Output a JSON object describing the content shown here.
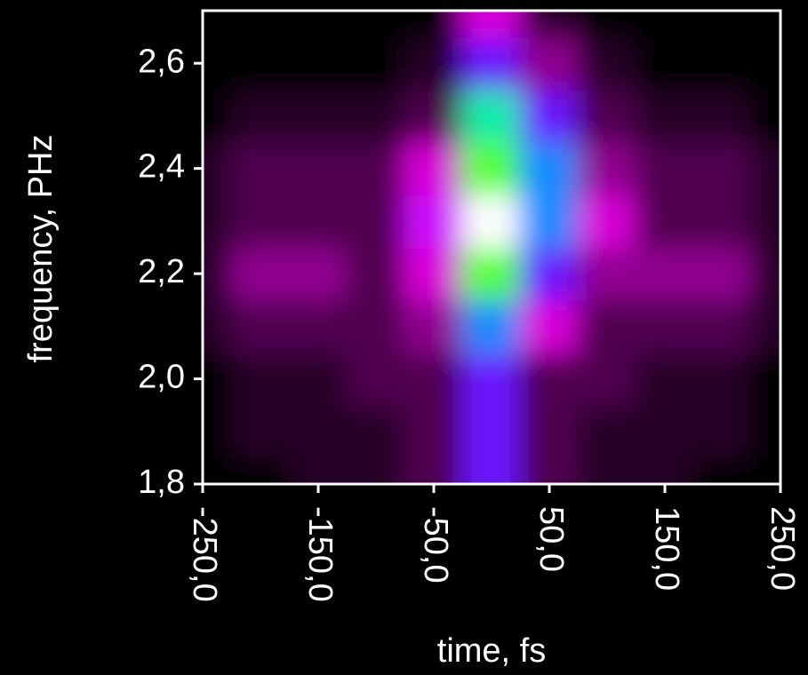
{
  "chart_data": {
    "type": "heatmap",
    "xlabel": "time, fs",
    "ylabel": "frequency, PHz",
    "x": [
      -250,
      -200,
      -150,
      -100,
      -50,
      0,
      50,
      100,
      150,
      200,
      250
    ],
    "y": [
      1.8,
      1.9,
      2.0,
      2.1,
      2.2,
      2.3,
      2.4,
      2.5,
      2.6,
      2.7
    ],
    "z": [
      [
        1,
        1,
        1.5,
        1.5,
        2,
        4,
        2,
        1.5,
        1.5,
        1,
        1
      ],
      [
        1,
        1.5,
        1.5,
        1.5,
        2,
        4,
        2,
        1.5,
        1.5,
        1.5,
        1
      ],
      [
        1,
        1.5,
        1.5,
        2,
        2,
        4,
        2,
        2,
        1.5,
        1.5,
        1
      ],
      [
        1.5,
        2,
        2,
        2,
        2.5,
        5,
        3,
        2,
        2,
        2,
        1.5
      ],
      [
        1.5,
        2.5,
        2.5,
        2,
        3,
        7,
        4,
        2.5,
        2.5,
        2.5,
        1.5
      ],
      [
        1.5,
        2,
        2,
        2,
        3.5,
        10,
        5,
        3,
        2,
        2,
        1.5
      ],
      [
        1.5,
        2,
        2,
        2,
        3,
        7,
        5,
        2.5,
        2,
        2,
        1.5
      ],
      [
        1,
        1.5,
        1.5,
        1.5,
        2,
        6,
        4,
        2,
        1.5,
        1.5,
        1
      ],
      [
        1,
        1,
        1,
        1,
        1.5,
        4,
        2.5,
        1.5,
        1,
        1,
        1
      ],
      [
        1,
        1,
        1,
        1,
        1,
        3,
        1.5,
        1,
        1,
        1,
        1
      ]
    ],
    "colors": [
      "#000000",
      "#5a005a",
      "#ff00ff",
      "#2020ff",
      "#00e0ff",
      "#00ff40",
      "#ffff00",
      "#ff2000",
      "#ffffff"
    ],
    "xlim": [
      -250,
      250
    ],
    "xticks": [
      {
        "value": -250,
        "label": "-250,0"
      },
      {
        "value": -150,
        "label": "-150,0"
      },
      {
        "value": -50,
        "label": "-50,0"
      },
      {
        "value": 50,
        "label": "50,0"
      },
      {
        "value": 150,
        "label": "150,0"
      },
      {
        "value": 250,
        "label": "250,0"
      }
    ],
    "ylim": [
      1.8,
      2.7
    ],
    "yticks": [
      {
        "value": 1.8,
        "label": "1,8"
      },
      {
        "value": 2.0,
        "label": "2,0"
      },
      {
        "value": 2.2,
        "label": "2,2"
      },
      {
        "value": 2.4,
        "label": "2,4"
      },
      {
        "value": 2.6,
        "label": "2,6"
      }
    ]
  }
}
